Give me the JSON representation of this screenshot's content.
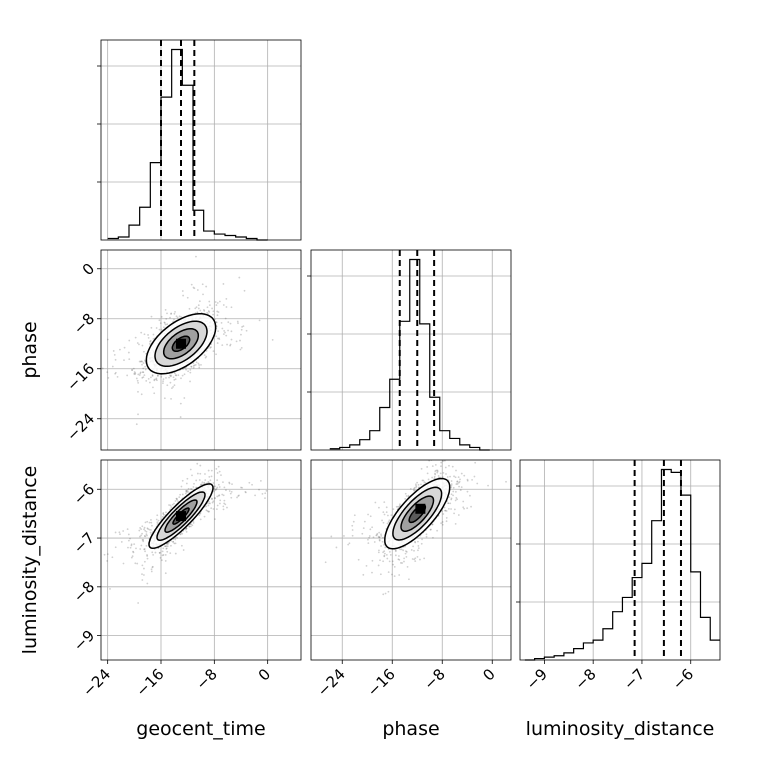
{
  "chart_data": {
    "type": "corner",
    "parameters": [
      "geocent_time",
      "phase",
      "luminosity_distance"
    ],
    "labels": {
      "geocent_time": "geocent_time",
      "phase": "phase",
      "luminosity_distance": "luminosity_distance"
    },
    "ranges": {
      "geocent_time": [
        -25,
        5
      ],
      "phase": [
        -29,
        3
      ],
      "luminosity_distance": [
        -9.5,
        -5.4
      ]
    },
    "ticks": {
      "geocent_time": [
        {
          "value": -24,
          "label": "−24"
        },
        {
          "value": -16,
          "label": "−16"
        },
        {
          "value": -8,
          "label": "−8"
        },
        {
          "value": 0,
          "label": "0"
        }
      ],
      "phase": [
        {
          "value": -24,
          "label": "−24"
        },
        {
          "value": -16,
          "label": "−16"
        },
        {
          "value": -8,
          "label": "−8"
        },
        {
          "value": 0,
          "label": "0"
        }
      ],
      "luminosity_distance": [
        {
          "value": -9,
          "label": "−9"
        },
        {
          "value": -8,
          "label": "−8"
        },
        {
          "value": -7,
          "label": "−7"
        },
        {
          "value": -6,
          "label": "−6"
        }
      ]
    },
    "quantiles": {
      "geocent_time": [
        -16.0,
        -13.0,
        -11.0
      ],
      "phase": [
        -14.8,
        -12.0,
        -9.3
      ],
      "luminosity_distance": [
        -7.15,
        -6.55,
        -6.2
      ]
    },
    "histograms": {
      "geocent_time": {
        "bin_edges": [
          -24.0,
          -22.4,
          -20.8,
          -19.2,
          -17.6,
          -16.0,
          -14.4,
          -12.8,
          -11.2,
          -9.6,
          -8.0,
          -6.4,
          -4.8,
          -3.2,
          -1.6,
          0.0
        ],
        "counts": [
          1,
          2,
          10,
          22,
          52,
          96,
          128,
          104,
          20,
          6,
          4,
          3,
          2,
          1,
          0
        ]
      },
      "phase": {
        "bin_edges": [
          -26.0,
          -24.4,
          -22.8,
          -21.2,
          -19.6,
          -18.0,
          -16.4,
          -14.8,
          -13.2,
          -11.6,
          -10.0,
          -8.4,
          -6.8,
          -5.2,
          -3.6,
          -2.0,
          -0.4
        ],
        "counts": [
          1,
          2,
          4,
          8,
          15,
          33,
          55,
          100,
          148,
          98,
          41,
          15,
          9,
          4,
          2,
          0
        ]
      },
      "luminosity_distance": {
        "bin_edges": [
          -9.4,
          -9.2,
          -9.0,
          -8.8,
          -8.6,
          -8.4,
          -8.2,
          -8.0,
          -7.8,
          -7.6,
          -7.4,
          -7.2,
          -7.0,
          -6.8,
          -6.6,
          -6.4,
          -6.2,
          -6.0,
          -5.8,
          -5.6,
          -5.4
        ],
        "counts": [
          0,
          1,
          2,
          3,
          5,
          8,
          12,
          14,
          22,
          34,
          44,
          58,
          68,
          98,
          134,
          132,
          116,
          62,
          30,
          14
        ]
      }
    },
    "pairs": [
      {
        "x": "geocent_time",
        "y": "phase",
        "center": [
          -13.0,
          -12.0
        ],
        "sigma": [
          2.6,
          2.4
        ],
        "rho": 0.55,
        "density_peak": [
          -13.0,
          -12.0
        ],
        "contours": [
          0.5,
          1.0,
          1.5,
          2.0
        ]
      },
      {
        "x": "geocent_time",
        "y": "luminosity_distance",
        "center": [
          -13.0,
          -6.55
        ],
        "sigma": [
          2.4,
          0.33
        ],
        "rho": 0.88,
        "density_peak": [
          -13.0,
          -6.55
        ],
        "contours": [
          0.5,
          1.0,
          1.5,
          2.0
        ]
      },
      {
        "x": "phase",
        "y": "luminosity_distance",
        "center": [
          -12.0,
          -6.5
        ],
        "sigma": [
          2.6,
          0.36
        ],
        "rho": 0.75,
        "density_peak": [
          -11.5,
          -6.4
        ],
        "contours": [
          0.5,
          1.0,
          1.5,
          2.0
        ]
      }
    ],
    "grid": true
  }
}
